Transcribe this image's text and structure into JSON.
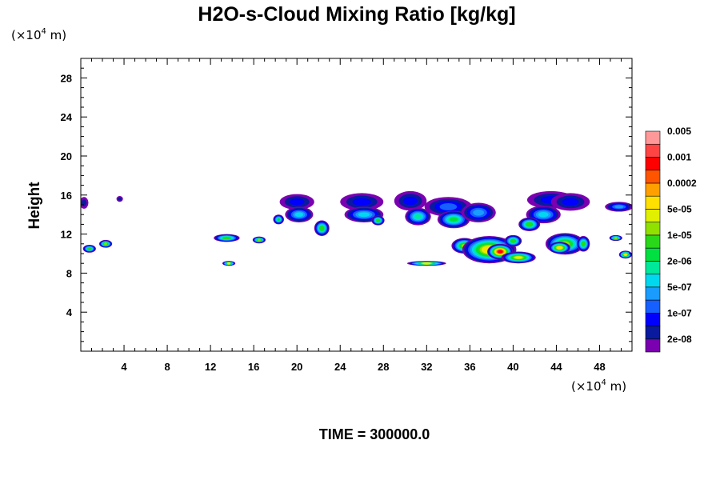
{
  "chart_data": {
    "type": "heatmap",
    "title": "H2O-s-Cloud Mixing Ratio [kg/kg]",
    "ylabel": "Height",
    "x_unit_prefix": "(×10",
    "x_unit_exp": "4",
    "x_unit_suffix": " m)",
    "y_unit_prefix": "(×10",
    "y_unit_exp": "4",
    "y_unit_suffix": " m)",
    "footer": "TIME = 300000.0",
    "xlim": [
      0,
      51
    ],
    "ylim": [
      0,
      30
    ],
    "x_ticks": [
      4,
      8,
      12,
      16,
      20,
      24,
      28,
      32,
      36,
      40,
      44,
      48
    ],
    "y_ticks": [
      4,
      8,
      12,
      16,
      20,
      24,
      28
    ],
    "colorbar": {
      "colors": [
        "#7a00b0",
        "#0a1a9e",
        "#0000ff",
        "#1560ff",
        "#1a9cff",
        "#00d8f0",
        "#00e89a",
        "#00e040",
        "#2ad81a",
        "#90e000",
        "#e0f000",
        "#ffe000",
        "#ffa000",
        "#ff5500",
        "#ff0000",
        "#ff4444",
        "#ff9999"
      ],
      "labels": [
        "2e-08",
        "1e-07",
        "5e-07",
        "2e-06",
        "1e-05",
        "5e-05",
        "0.0002",
        "0.001",
        "0.005"
      ]
    },
    "cloud_regions": [
      {
        "x": 0.3,
        "y": 15.2,
        "rx": 0.4,
        "ry": 0.6,
        "level": 1
      },
      {
        "x": 3.6,
        "y": 15.6,
        "rx": 0.3,
        "ry": 0.3,
        "level": 1
      },
      {
        "x": 0.8,
        "y": 10.5,
        "rx": 0.6,
        "ry": 0.4,
        "level": 8
      },
      {
        "x": 2.3,
        "y": 11.0,
        "rx": 0.6,
        "ry": 0.4,
        "level": 9
      },
      {
        "x": 13.5,
        "y": 11.6,
        "rx": 1.2,
        "ry": 0.4,
        "level": 8
      },
      {
        "x": 13.7,
        "y": 9.0,
        "rx": 0.6,
        "ry": 0.25,
        "level": 10
      },
      {
        "x": 16.5,
        "y": 11.4,
        "rx": 0.6,
        "ry": 0.35,
        "level": 9
      },
      {
        "x": 20.0,
        "y": 15.3,
        "rx": 1.6,
        "ry": 0.8,
        "level": 2
      },
      {
        "x": 20.2,
        "y": 14.0,
        "rx": 1.3,
        "ry": 0.8,
        "level": 5
      },
      {
        "x": 18.3,
        "y": 13.5,
        "rx": 0.5,
        "ry": 0.5,
        "level": 7
      },
      {
        "x": 22.3,
        "y": 12.6,
        "rx": 0.7,
        "ry": 0.8,
        "level": 8
      },
      {
        "x": 26.0,
        "y": 15.3,
        "rx": 2.0,
        "ry": 0.9,
        "level": 2
      },
      {
        "x": 26.2,
        "y": 14.0,
        "rx": 1.8,
        "ry": 0.8,
        "level": 5
      },
      {
        "x": 27.5,
        "y": 13.4,
        "rx": 0.6,
        "ry": 0.5,
        "level": 8
      },
      {
        "x": 30.5,
        "y": 15.4,
        "rx": 1.5,
        "ry": 1.0,
        "level": 2
      },
      {
        "x": 31.2,
        "y": 13.8,
        "rx": 1.2,
        "ry": 0.9,
        "level": 6
      },
      {
        "x": 34.0,
        "y": 14.8,
        "rx": 2.2,
        "ry": 1.0,
        "level": 3
      },
      {
        "x": 34.5,
        "y": 13.5,
        "rx": 1.5,
        "ry": 0.9,
        "level": 7
      },
      {
        "x": 36.8,
        "y": 14.2,
        "rx": 1.6,
        "ry": 1.0,
        "level": 4
      },
      {
        "x": 32.0,
        "y": 9.0,
        "rx": 1.8,
        "ry": 0.25,
        "level": 10
      },
      {
        "x": 35.5,
        "y": 10.8,
        "rx": 1.2,
        "ry": 0.8,
        "level": 9
      },
      {
        "x": 37.8,
        "y": 10.4,
        "rx": 2.5,
        "ry": 1.4,
        "level": 11
      },
      {
        "x": 38.8,
        "y": 10.2,
        "rx": 1.2,
        "ry": 0.8,
        "level": 14
      },
      {
        "x": 40.5,
        "y": 9.6,
        "rx": 1.6,
        "ry": 0.6,
        "level": 10
      },
      {
        "x": 40.0,
        "y": 11.3,
        "rx": 0.8,
        "ry": 0.6,
        "level": 8
      },
      {
        "x": 43.5,
        "y": 15.5,
        "rx": 2.2,
        "ry": 0.9,
        "level": 2
      },
      {
        "x": 42.8,
        "y": 14.0,
        "rx": 1.6,
        "ry": 0.9,
        "level": 5
      },
      {
        "x": 41.5,
        "y": 13.0,
        "rx": 1.0,
        "ry": 0.7,
        "level": 8
      },
      {
        "x": 45.3,
        "y": 15.3,
        "rx": 1.8,
        "ry": 0.9,
        "level": 2
      },
      {
        "x": 44.8,
        "y": 11.0,
        "rx": 1.8,
        "ry": 1.1,
        "level": 9
      },
      {
        "x": 44.3,
        "y": 10.6,
        "rx": 1.0,
        "ry": 0.6,
        "level": 11
      },
      {
        "x": 46.5,
        "y": 11.0,
        "rx": 0.6,
        "ry": 0.8,
        "level": 8
      },
      {
        "x": 49.8,
        "y": 14.8,
        "rx": 1.3,
        "ry": 0.5,
        "level": 4
      },
      {
        "x": 49.5,
        "y": 11.6,
        "rx": 0.6,
        "ry": 0.3,
        "level": 9
      },
      {
        "x": 50.4,
        "y": 9.9,
        "rx": 0.6,
        "ry": 0.4,
        "level": 11
      }
    ]
  }
}
